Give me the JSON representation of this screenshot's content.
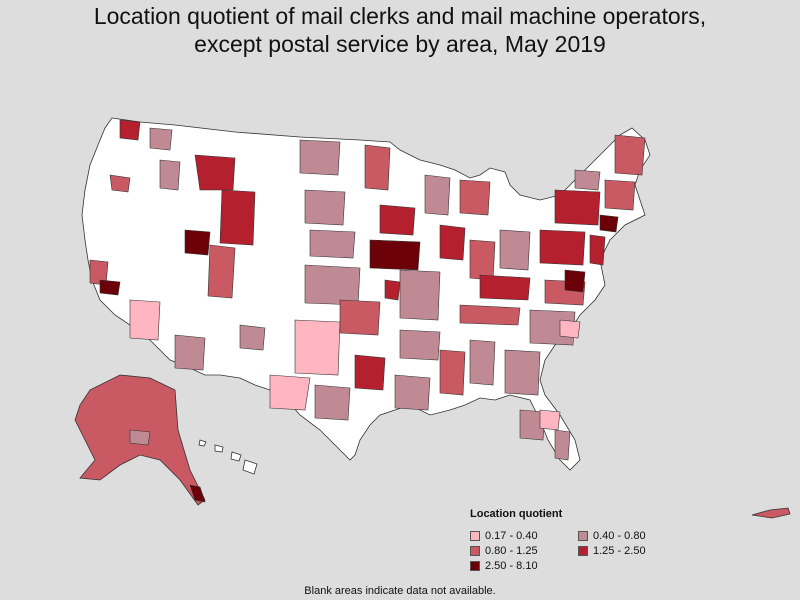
{
  "title_line1": "Location quotient of mail clerks and mail machine operators,",
  "title_line2": "except postal service by area, May 2019",
  "legend": {
    "title": "Location quotient",
    "items": [
      {
        "label": "0.17 - 0.40",
        "color": "#ffb6c1"
      },
      {
        "label": "0.40 - 0.80",
        "color": "#c08a95"
      },
      {
        "label": "0.80 - 1.25",
        "color": "#c95a64"
      },
      {
        "label": "1.25 - 2.50",
        "color": "#b5202e"
      },
      {
        "label": "2.50 - 8.10",
        "color": "#6b0009"
      }
    ]
  },
  "note": "Blank areas indicate data not available.",
  "colors": {
    "background": "#dddddd",
    "no_data": "#ffffff",
    "border": "#333333"
  }
}
